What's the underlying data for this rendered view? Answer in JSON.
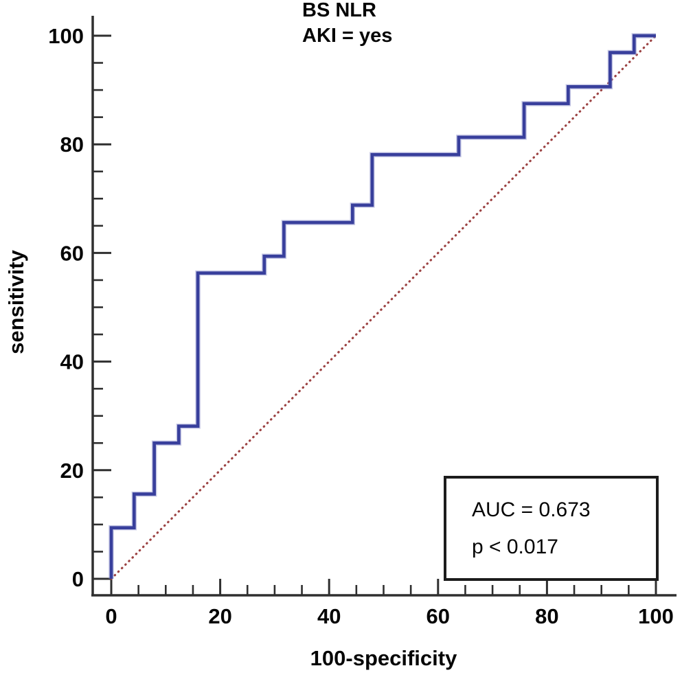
{
  "chart_data": {
    "type": "line",
    "subtype": "roc_step_curve",
    "title": "BS NLR",
    "subtitle": "AKI = yes",
    "xlabel": "100-specificity",
    "ylabel": "sensitivity",
    "xlim": [
      0,
      100
    ],
    "ylim": [
      0,
      100
    ],
    "x_ticks_major": [
      0,
      20,
      40,
      60,
      80,
      100
    ],
    "y_ticks_major": [
      0,
      20,
      40,
      60,
      80,
      100
    ],
    "tick_minor_step": 5,
    "grid": false,
    "legend": "none",
    "axis_color": "#2f2f2f",
    "roc_curve": {
      "name": "BS NLR ROC curve",
      "color": "#383f9c",
      "halo_color": "#8a8ec9",
      "points": [
        [
          0,
          0
        ],
        [
          0,
          9.4
        ],
        [
          4.2,
          9.4
        ],
        [
          4.2,
          15.6
        ],
        [
          7.9,
          15.6
        ],
        [
          7.9,
          25.0
        ],
        [
          12.4,
          25.0
        ],
        [
          12.4,
          28.1
        ],
        [
          15.9,
          28.1
        ],
        [
          15.9,
          56.3
        ],
        [
          28.1,
          56.3
        ],
        [
          28.1,
          59.4
        ],
        [
          31.7,
          59.4
        ],
        [
          31.7,
          65.6
        ],
        [
          44.3,
          65.6
        ],
        [
          44.3,
          68.8
        ],
        [
          47.9,
          68.8
        ],
        [
          47.9,
          78.1
        ],
        [
          63.8,
          78.1
        ],
        [
          63.8,
          81.3
        ],
        [
          75.8,
          81.3
        ],
        [
          75.8,
          87.5
        ],
        [
          83.9,
          87.5
        ],
        [
          83.9,
          90.6
        ],
        [
          91.6,
          90.6
        ],
        [
          91.6,
          96.9
        ],
        [
          96.0,
          96.9
        ],
        [
          96.0,
          100
        ],
        [
          100,
          100
        ]
      ]
    },
    "reference_line": {
      "name": "chance diagonal",
      "color": "#9c4343",
      "style": "dotted",
      "points": [
        [
          0,
          0
        ],
        [
          100,
          100
        ]
      ]
    },
    "annotation": {
      "auc_text": "AUC = 0.673",
      "p_text": "p < 0.017"
    }
  }
}
